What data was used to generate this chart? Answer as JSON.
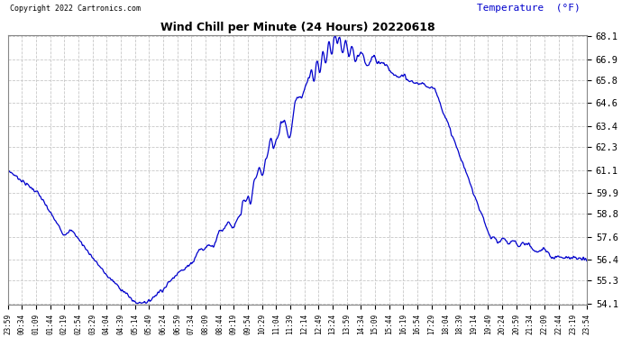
{
  "title": "Wind Chill per Minute (24 Hours) 20220618",
  "temp_label": "Temperature  (°F)",
  "copyright_text": "Copyright 2022 Cartronics.com",
  "line_color": "#0000cc",
  "ylabel_color": "#0000cc",
  "background_color": "#ffffff",
  "grid_color": "#c8c8c8",
  "ylim": [
    54.1,
    68.1
  ],
  "yticks": [
    54.1,
    55.3,
    56.4,
    57.6,
    58.8,
    59.9,
    61.1,
    62.3,
    63.4,
    64.6,
    65.8,
    66.9,
    68.1
  ],
  "xtick_labels": [
    "23:59",
    "00:34",
    "01:09",
    "01:44",
    "02:19",
    "02:54",
    "03:29",
    "04:04",
    "04:39",
    "05:14",
    "05:49",
    "06:24",
    "06:59",
    "07:34",
    "08:09",
    "08:44",
    "09:19",
    "09:54",
    "10:29",
    "11:04",
    "11:39",
    "12:14",
    "12:49",
    "13:24",
    "13:59",
    "14:34",
    "15:09",
    "15:44",
    "16:19",
    "16:54",
    "17:29",
    "18:04",
    "18:39",
    "19:14",
    "19:49",
    "20:24",
    "20:59",
    "21:34",
    "22:09",
    "22:44",
    "23:19",
    "23:54"
  ]
}
